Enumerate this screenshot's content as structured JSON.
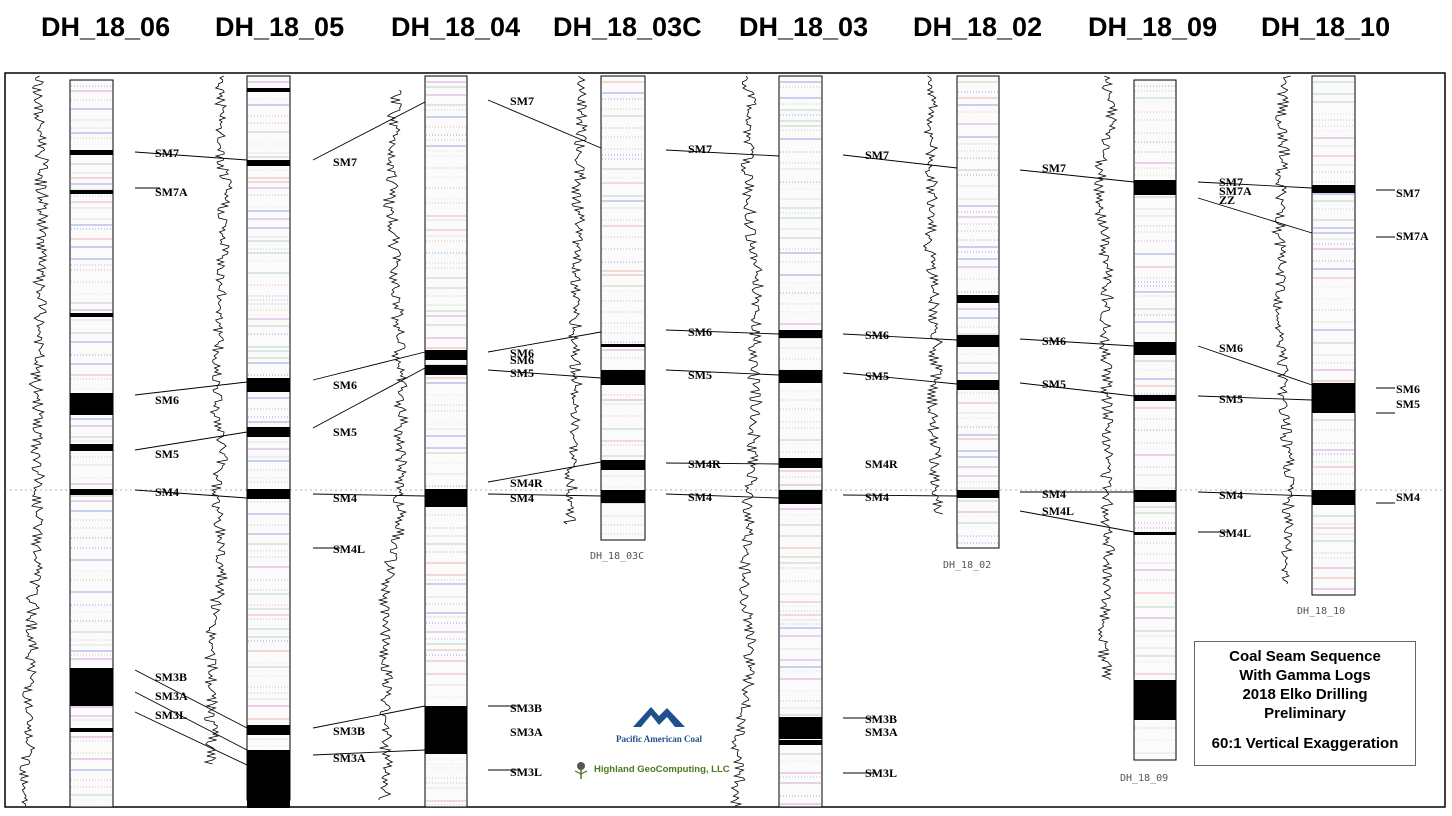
{
  "holes": [
    "DH_18_06",
    "DH_18_05",
    "DH_18_04",
    "DH_18_03C",
    "DH_18_03",
    "DH_18_02",
    "DH_18_09",
    "DH_18_10"
  ],
  "column_captions": [
    "DH_18_03C",
    "DH_18_02",
    "DH_18_09",
    "DH_18_10"
  ],
  "seams": [
    "SM7",
    "SM7A",
    "ZZ",
    "SM6",
    "SM5",
    "SM4R",
    "SM4",
    "SM4L",
    "SM3B",
    "SM3A",
    "SM3L"
  ],
  "legend": {
    "lines": [
      "Coal Seam Sequence",
      "With Gamma Logs",
      "2018 Elko Drilling",
      "Preliminary"
    ],
    "exaggeration": "60:1 Vertical Exaggeration"
  },
  "logos": {
    "pacific_american_coal": "Pacific American Coal",
    "highland": "Highland GeoComputing, LLC"
  },
  "colors": {
    "coal": "#000000",
    "border": "#000000",
    "lith_green": "#7fae88",
    "lith_magenta": "#b35ab3",
    "lith_blue": "#3c46c8",
    "brand_blue": "#1f4f8f",
    "brand_green": "#4a7a1c"
  }
}
